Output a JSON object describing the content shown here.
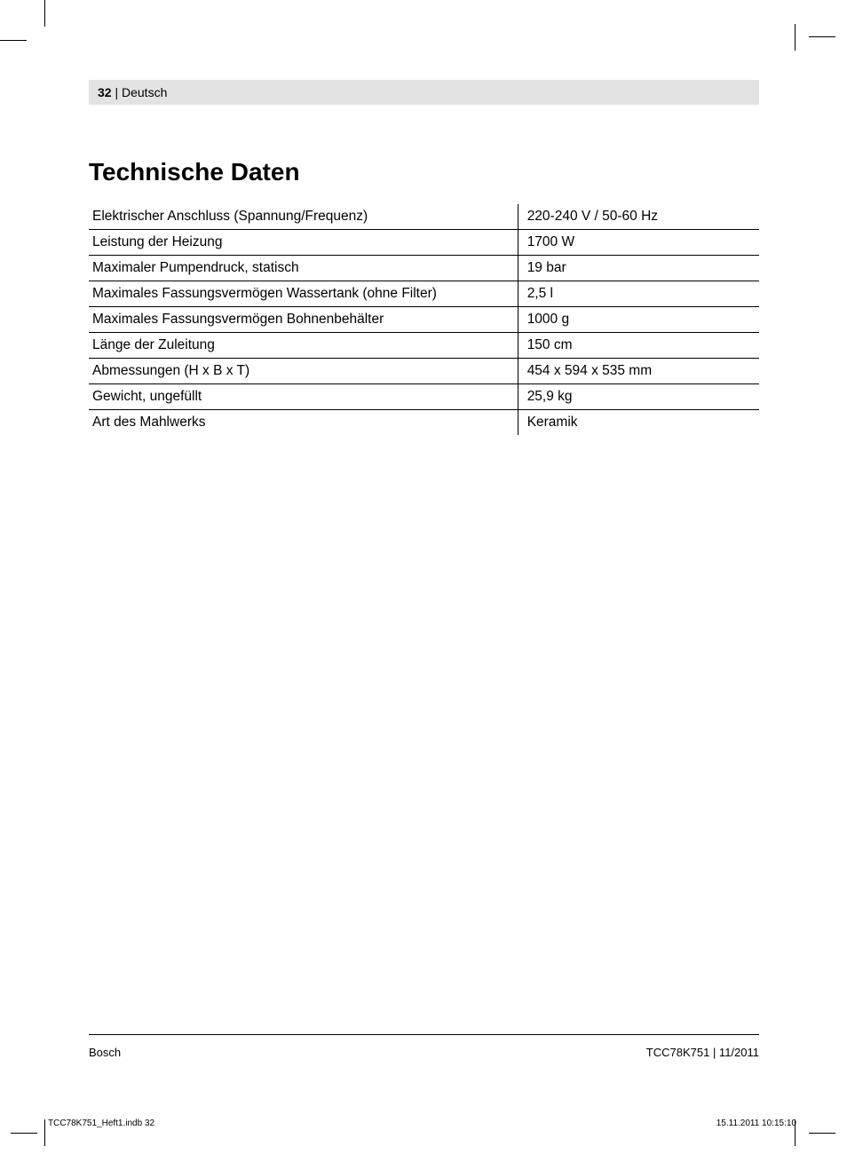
{
  "header": {
    "page_number": "32",
    "separator": " | ",
    "language": "Deutsch"
  },
  "section_title": "Technische Daten",
  "specs": {
    "rows": [
      {
        "label": "Elektrischer Anschluss (Spannung/Frequenz)",
        "value": "220-240 V / 50-60 Hz"
      },
      {
        "label": "Leistung der Heizung",
        "value": "1700 W"
      },
      {
        "label": "Maximaler Pumpendruck, statisch",
        "value": "19 bar"
      },
      {
        "label": "Maximales Fassungsvermögen Wassertank (ohne Filter)",
        "value": "2,5 l"
      },
      {
        "label": "Maximales Fassungsvermögen Bohnenbehälter",
        "value": "1000 g"
      },
      {
        "label": "Länge der Zuleitung",
        "value": "150 cm"
      },
      {
        "label": "Abmessungen (H x B x T)",
        "value": "454 x 594 x 535 mm"
      },
      {
        "label": "Gewicht, ungefüllt",
        "value": "25,9 kg"
      },
      {
        "label": "Art des Mahlwerks",
        "value": "Keramik"
      }
    ]
  },
  "footer": {
    "brand": "Bosch",
    "model_date": "TCC78K751 | 11/2011"
  },
  "print_info": {
    "file": "TCC78K751_Heft1.indb   32",
    "timestamp": "15.11.2011   10:15:10"
  }
}
